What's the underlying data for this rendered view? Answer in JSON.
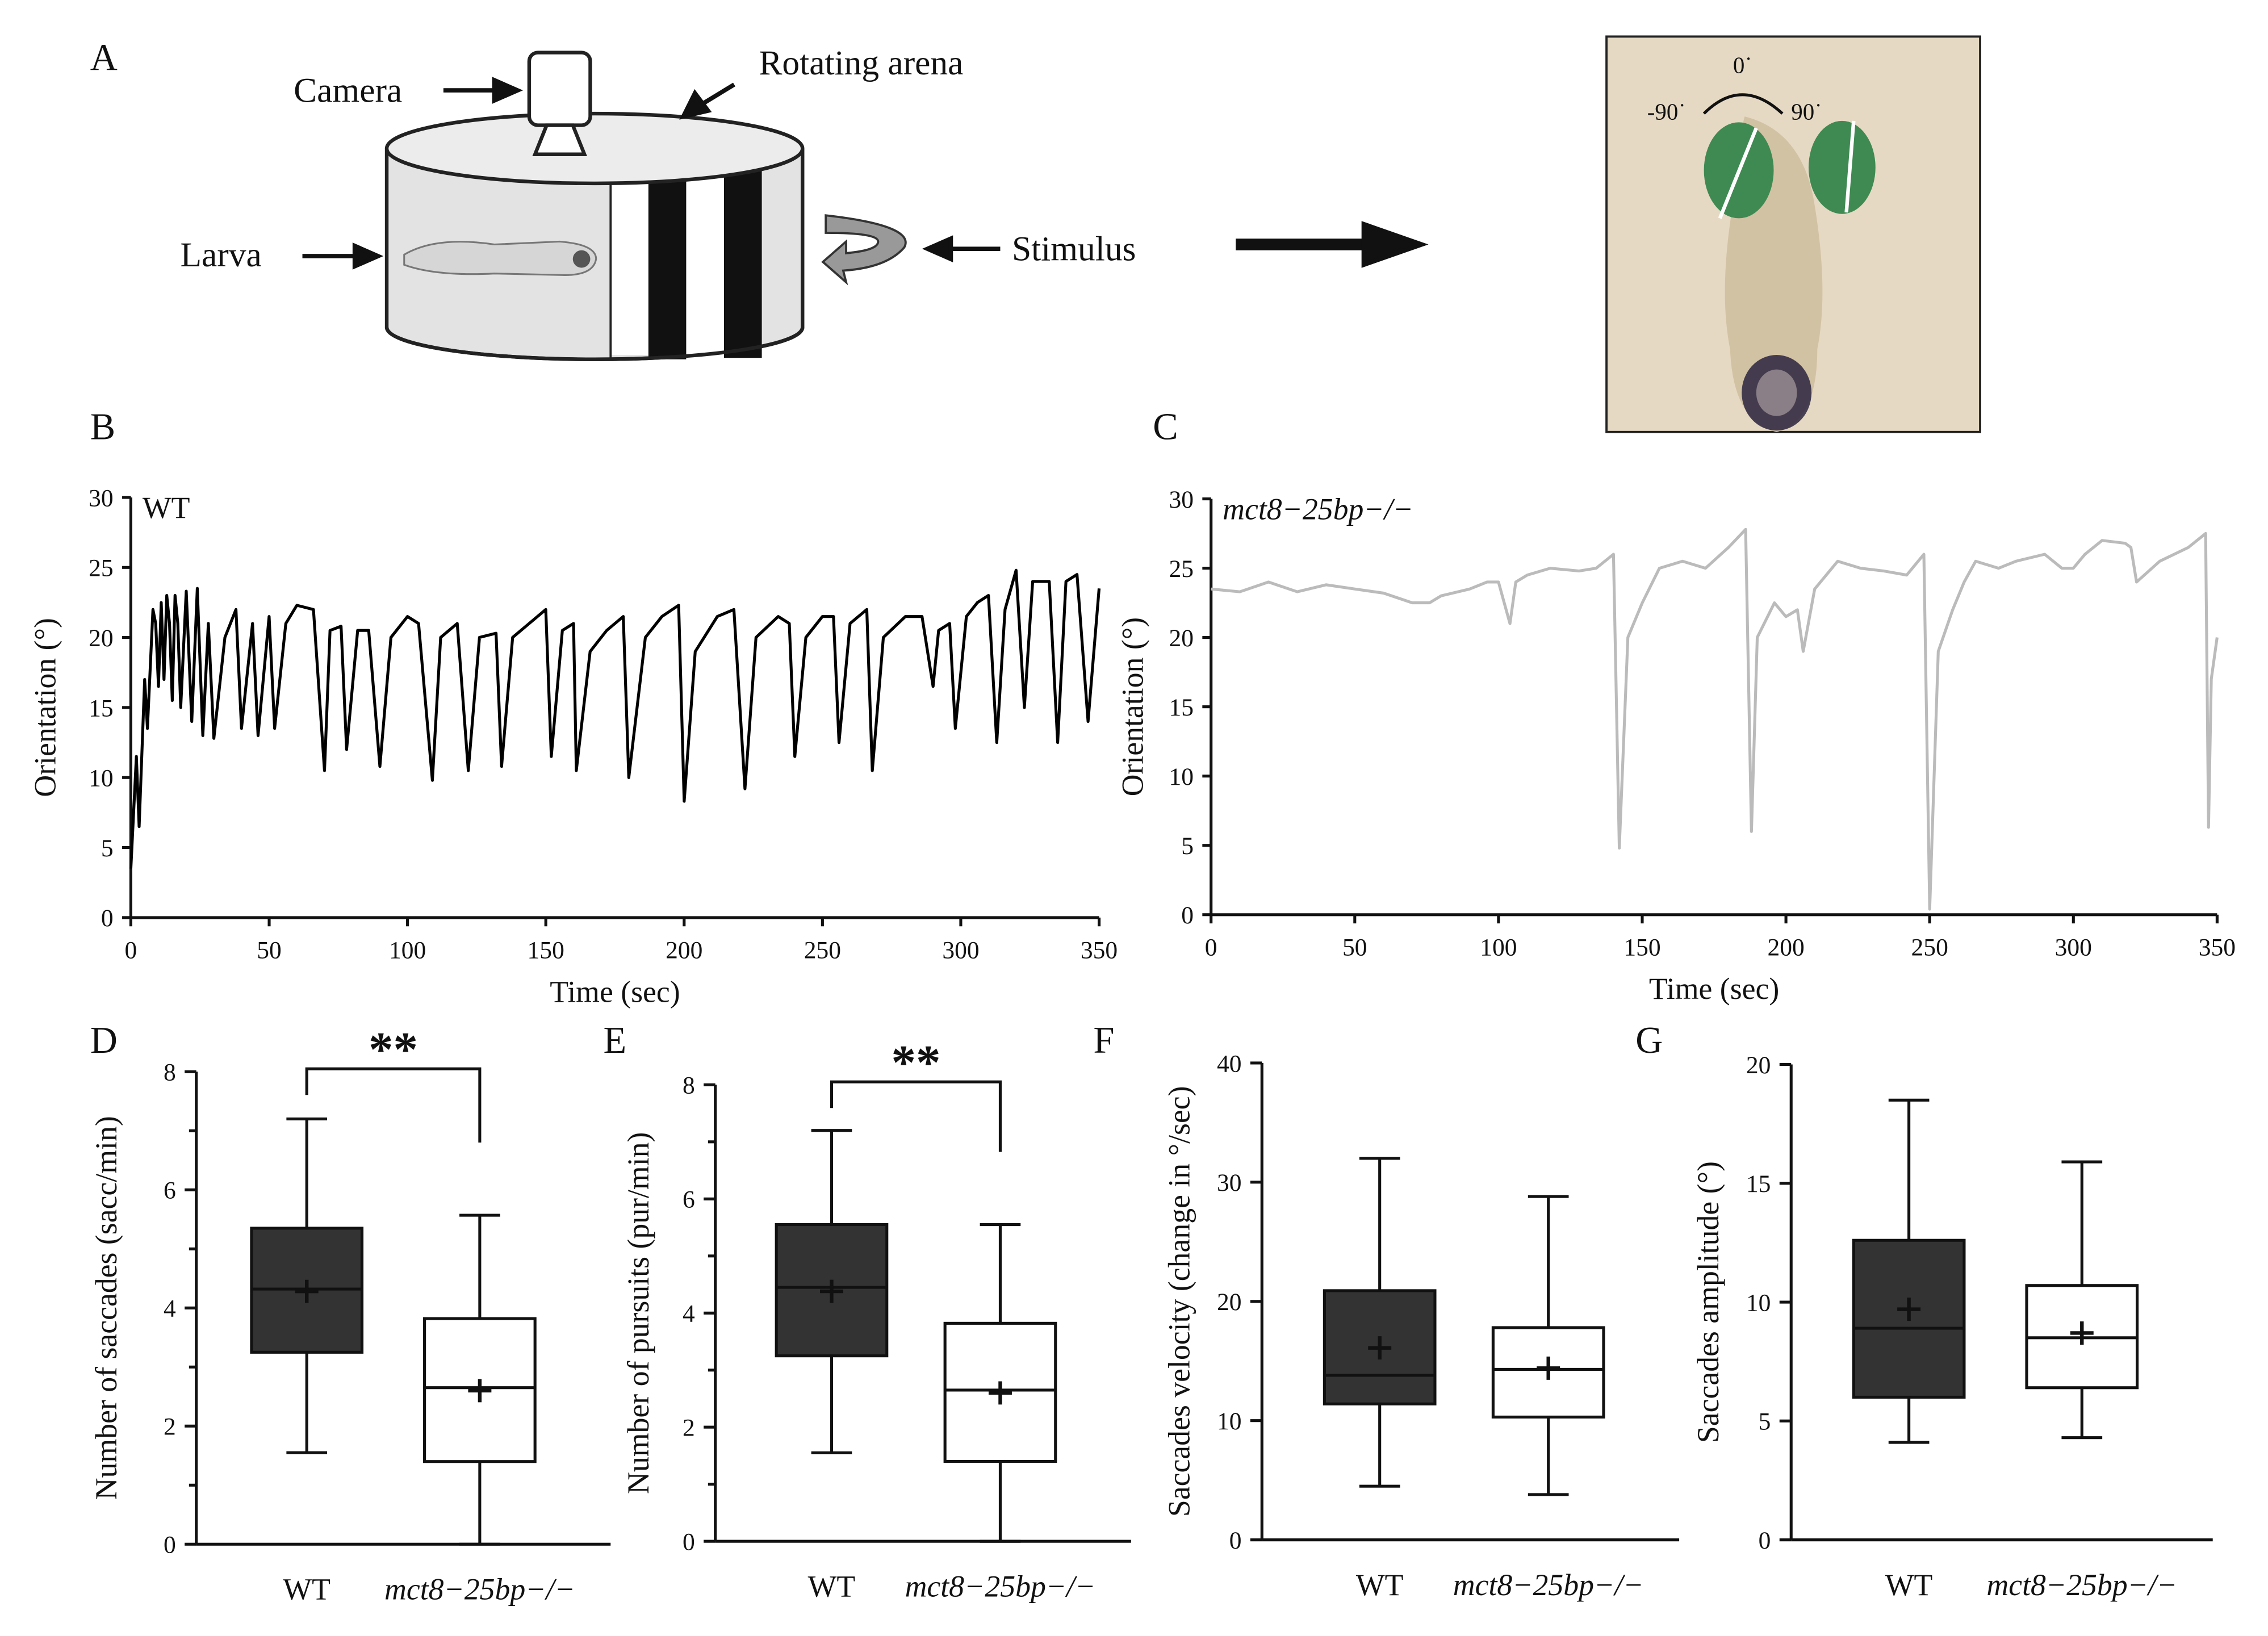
{
  "diagram": {
    "panel": "A",
    "labels": {
      "camera": "Camera",
      "arena": "Rotating arena",
      "larva": "Larva",
      "stimulus": "Stimulus",
      "zero": "0˙",
      "minus90": "-90˙",
      "plus90": "90˙"
    }
  },
  "chart_data": [
    {
      "type": "line",
      "panel": "B",
      "xlabel": "Time (sec)",
      "ylabel": "Orientation (°)",
      "xlim": [
        0,
        350
      ],
      "xticks": [
        0,
        50,
        100,
        150,
        200,
        250,
        300,
        350
      ],
      "ylim": [
        0,
        30
      ],
      "yticks": [
        0,
        5,
        10,
        15,
        20,
        25,
        30
      ],
      "series": [
        {
          "name": "WT",
          "color": "#000000",
          "x": [
            0,
            2,
            3,
            5,
            6,
            8,
            9,
            10,
            11,
            12,
            13,
            14,
            15,
            16,
            17,
            18,
            20,
            22,
            24,
            26,
            28,
            30,
            34,
            38,
            40,
            44,
            46,
            50,
            52,
            56,
            60,
            66,
            70,
            72,
            76,
            78,
            82,
            86,
            90,
            94,
            100,
            104,
            109,
            112,
            118,
            122,
            126,
            132,
            134,
            138,
            144,
            150,
            152,
            156,
            160,
            161,
            166,
            172,
            178,
            180,
            186,
            192,
            198,
            200,
            204,
            212,
            218,
            222,
            226,
            234,
            238,
            240,
            244,
            250,
            254,
            256,
            260,
            266,
            268,
            272,
            280,
            286,
            290,
            292,
            296,
            298,
            302,
            306,
            310,
            313,
            316,
            320,
            323,
            326,
            332,
            335,
            338,
            342,
            346,
            350
          ],
          "values": [
            3.5,
            11.5,
            6.5,
            17,
            13.5,
            22,
            21,
            16.5,
            22.5,
            17,
            23,
            21,
            15.5,
            23,
            21,
            15,
            23.3,
            14,
            23.5,
            13,
            21,
            12.8,
            20,
            22,
            13.5,
            21,
            13,
            21.5,
            13.5,
            21,
            22.3,
            22,
            10.5,
            20.5,
            20.8,
            12,
            20.5,
            20.5,
            10.8,
            20,
            21.5,
            21,
            9.8,
            20,
            21,
            10.5,
            20,
            20.3,
            10.8,
            20,
            21,
            22,
            11.5,
            20.5,
            21,
            10.5,
            19,
            20.5,
            21.5,
            10,
            20,
            21.5,
            22.3,
            8.3,
            19,
            21.5,
            22,
            9.2,
            20,
            21.5,
            21,
            11.5,
            20,
            21.5,
            21.5,
            12.5,
            21,
            22,
            10.5,
            20,
            21.5,
            21.5,
            16.5,
            20.5,
            21,
            13.5,
            21.5,
            22.5,
            23,
            12.5,
            22,
            24.8,
            15,
            24,
            24,
            12.5,
            24,
            24.5,
            14,
            23.5
          ]
        }
      ]
    },
    {
      "type": "line",
      "panel": "C",
      "xlabel": "Time (sec)",
      "ylabel": "Orientation (°)",
      "xlim": [
        0,
        350
      ],
      "xticks": [
        0,
        50,
        100,
        150,
        200,
        250,
        300,
        350
      ],
      "ylim": [
        0,
        30
      ],
      "yticks": [
        0,
        5,
        10,
        15,
        20,
        25,
        30
      ],
      "series": [
        {
          "name": "mct8−25bp−/−",
          "color": "#bbbbbb",
          "x": [
            0,
            10,
            20,
            30,
            40,
            50,
            60,
            70,
            76,
            80,
            90,
            96,
            100,
            104,
            106,
            110,
            118,
            128,
            134,
            140,
            142,
            145,
            150,
            156,
            164,
            172,
            180,
            186,
            188,
            190,
            196,
            200,
            204,
            206,
            210,
            218,
            226,
            234,
            242,
            248,
            250,
            253,
            258,
            262,
            266,
            274,
            280,
            290,
            296,
            300,
            304,
            310,
            318,
            320,
            322,
            330,
            340,
            346,
            347,
            348,
            350
          ],
          "values": [
            23.5,
            23.3,
            24,
            23.3,
            23.8,
            23.5,
            23.2,
            22.5,
            22.5,
            23,
            23.5,
            24,
            24,
            21,
            24,
            24.5,
            25,
            24.8,
            25,
            26,
            4.8,
            20,
            22.5,
            25,
            25.5,
            25,
            26.5,
            27.8,
            6,
            20,
            22.5,
            21.5,
            22,
            19,
            23.5,
            25.5,
            25,
            24.8,
            24.5,
            26,
            0.4,
            19,
            22,
            24,
            25.5,
            25,
            25.5,
            26,
            25,
            25,
            26,
            27,
            26.8,
            26.5,
            24,
            25.5,
            26.5,
            27.5,
            6.3,
            17,
            20
          ]
        }
      ]
    },
    {
      "type": "box",
      "panel": "D",
      "ylabel": "Number of saccades (sacc/min)",
      "categories": [
        "WT",
        "mct8−25bp−/−"
      ],
      "colors": [
        "#333333",
        "#ffffff"
      ],
      "ylim": [
        0,
        8
      ],
      "yticks": [
        0,
        2,
        4,
        6,
        8
      ],
      "minor_yticks": [
        1,
        3,
        5,
        7
      ],
      "significance": "**",
      "boxes": [
        {
          "min": 1.55,
          "q1": 3.25,
          "median": 4.32,
          "q3": 5.35,
          "max": 7.2,
          "mean": 4.28
        },
        {
          "min": 0,
          "q1": 1.4,
          "median": 2.65,
          "q3": 3.82,
          "max": 5.57,
          "mean": 2.6
        }
      ]
    },
    {
      "type": "box",
      "panel": "E",
      "ylabel": "Number of pursuits (pur/min)",
      "categories": [
        "WT",
        "mct8−25bp−/−"
      ],
      "colors": [
        "#333333",
        "#ffffff"
      ],
      "ylim": [
        0,
        8
      ],
      "yticks": [
        0,
        2,
        4,
        6,
        8
      ],
      "minor_yticks": [
        1,
        3,
        5,
        7
      ],
      "significance": "**",
      "boxes": [
        {
          "min": 1.55,
          "q1": 3.25,
          "median": 4.45,
          "q3": 5.55,
          "max": 7.2,
          "mean": 4.38
        },
        {
          "min": 0,
          "q1": 1.4,
          "median": 2.65,
          "q3": 3.82,
          "max": 5.55,
          "mean": 2.6
        }
      ]
    },
    {
      "type": "box",
      "panel": "F",
      "ylabel": "Saccades velocity (change in °/sec)",
      "categories": [
        "WT",
        "mct8−25bp−/−"
      ],
      "colors": [
        "#333333",
        "#ffffff"
      ],
      "ylim": [
        0,
        40
      ],
      "yticks": [
        0,
        10,
        20,
        30,
        40
      ],
      "boxes": [
        {
          "min": 4.5,
          "q1": 11.4,
          "median": 13.8,
          "q3": 20.9,
          "max": 32,
          "mean": 16.1
        },
        {
          "min": 3.8,
          "q1": 10.3,
          "median": 14.3,
          "q3": 17.8,
          "max": 28.8,
          "mean": 14.4
        }
      ]
    },
    {
      "type": "box",
      "panel": "G",
      "ylabel": "Saccades amplitude (°)",
      "categories": [
        "WT",
        "mct8−25bp−/−"
      ],
      "colors": [
        "#333333",
        "#ffffff"
      ],
      "ylim": [
        0,
        20
      ],
      "yticks": [
        0,
        5,
        10,
        15,
        20
      ],
      "boxes": [
        {
          "min": 4.1,
          "q1": 6.0,
          "median": 8.9,
          "q3": 12.6,
          "max": 18.5,
          "mean": 9.7
        },
        {
          "min": 4.3,
          "q1": 6.4,
          "median": 8.5,
          "q3": 10.7,
          "max": 15.9,
          "mean": 8.7
        }
      ]
    }
  ]
}
